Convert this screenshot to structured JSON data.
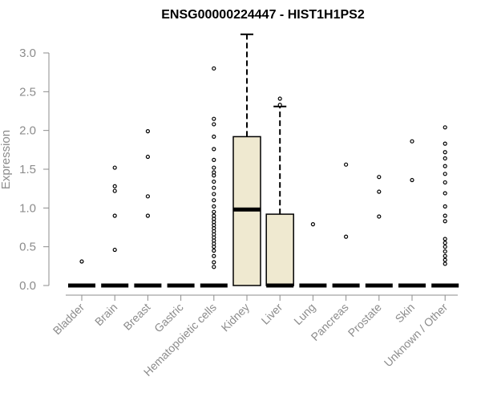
{
  "chart_data": {
    "type": "box",
    "title": "ENSG00000224447 - HIST1H1PS2",
    "xlabel": "",
    "ylabel": "Expression",
    "ylim": [
      0,
      3.3
    ],
    "yticks": [
      "0.0",
      "0.5",
      "1.0",
      "1.5",
      "2.0",
      "2.5",
      "3.0"
    ],
    "grid": false,
    "box_fill": "#efe9d0",
    "categories": [
      "Bladder",
      "Brain",
      "Breast",
      "Gastric",
      "Hematopoietic cells",
      "Kidney",
      "Liver",
      "Lung",
      "Pancreas",
      "Prostate",
      "Skin",
      "Unknown / Other"
    ],
    "boxes": [
      {
        "q1": 0,
        "median": 0,
        "q3": 0,
        "whisker_low": 0,
        "whisker_high": 0,
        "outliers": [
          0.31
        ]
      },
      {
        "q1": 0,
        "median": 0,
        "q3": 0,
        "whisker_low": 0,
        "whisker_high": 0,
        "outliers": [
          0.46,
          0.9,
          1.22,
          1.28,
          1.52
        ]
      },
      {
        "q1": 0,
        "median": 0,
        "q3": 0,
        "whisker_low": 0,
        "whisker_high": 0,
        "outliers": [
          0.9,
          1.15,
          1.66,
          1.99
        ]
      },
      {
        "q1": 0,
        "median": 0,
        "q3": 0,
        "whisker_low": 0,
        "whisker_high": 0,
        "outliers": []
      },
      {
        "q1": 0,
        "median": 0,
        "q3": 0,
        "whisker_low": 0,
        "whisker_high": 0,
        "outliers": [
          0.24,
          0.3,
          0.38,
          0.45,
          0.5,
          0.54,
          0.58,
          0.62,
          0.66,
          0.7,
          0.74,
          0.78,
          0.82,
          0.86,
          0.9,
          0.95,
          1.02,
          1.1,
          1.18,
          1.26,
          1.34,
          1.42,
          1.46,
          1.52,
          1.62,
          1.76,
          1.92,
          2.08,
          2.15,
          2.8
        ]
      },
      {
        "q1": 0,
        "median": 0.98,
        "q3": 1.92,
        "whisker_low": 0,
        "whisker_high": 3.24,
        "outliers": []
      },
      {
        "q1": 0,
        "median": 0,
        "q3": 0.92,
        "whisker_low": 0,
        "whisker_high": 2.31,
        "outliers": [
          2.33,
          2.41
        ]
      },
      {
        "q1": 0,
        "median": 0,
        "q3": 0,
        "whisker_low": 0,
        "whisker_high": 0,
        "outliers": [
          0.79
        ]
      },
      {
        "q1": 0,
        "median": 0,
        "q3": 0,
        "whisker_low": 0,
        "whisker_high": 0,
        "outliers": [
          0.63,
          1.56
        ]
      },
      {
        "q1": 0,
        "median": 0,
        "q3": 0,
        "whisker_low": 0,
        "whisker_high": 0,
        "outliers": [
          0.89,
          1.21,
          1.4
        ]
      },
      {
        "q1": 0,
        "median": 0,
        "q3": 0,
        "whisker_low": 0,
        "whisker_high": 0,
        "outliers": [
          1.36,
          1.86
        ]
      },
      {
        "q1": 0,
        "median": 0,
        "q3": 0,
        "whisker_low": 0,
        "whisker_high": 0,
        "outliers": [
          0.28,
          0.33,
          0.38,
          0.44,
          0.5,
          0.55,
          0.6,
          0.83,
          0.9,
          1.02,
          1.19,
          1.33,
          1.44,
          1.54,
          1.64,
          1.72,
          1.83,
          2.04
        ]
      }
    ]
  }
}
